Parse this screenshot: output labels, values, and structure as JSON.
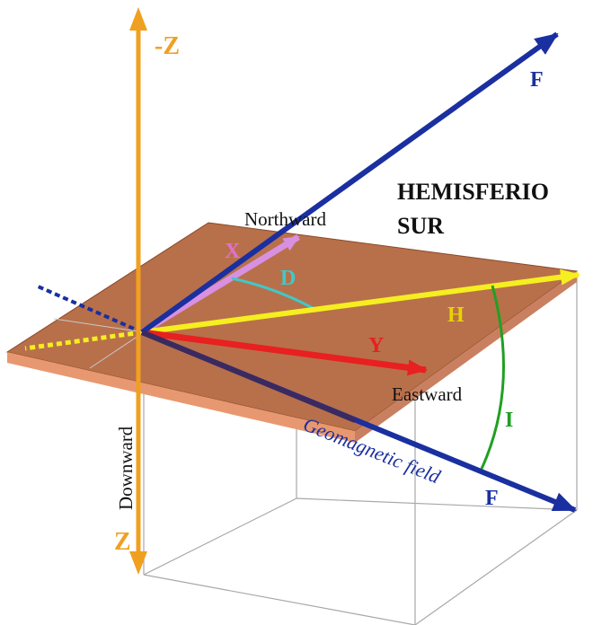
{
  "labels": {
    "neg_z": "-Z",
    "f_top": "F",
    "hemisphere_line1": "HEMISFERIO",
    "hemisphere_line2": "SUR",
    "northward": "Northward",
    "x": "X",
    "d": "D",
    "h": "H",
    "y": "Y",
    "eastward": "Eastward",
    "i": "I",
    "geomagnetic_field": "Geomagnetic field",
    "f_bottom": "F",
    "downward": "Downward",
    "z": "Z"
  },
  "colors": {
    "orange_axis": "#f0a020",
    "f_vector": "#1a2fa0",
    "x_vector": "#d890e0",
    "x_label": "#e070d0",
    "d_arc": "#40c8c8",
    "h_vector": "#f5ee20",
    "h_label": "#e8d400",
    "y_vector": "#e82020",
    "i_arc": "#20a020",
    "plane_top": "#b8704a",
    "plane_front": "#e89870",
    "box_lines": "#a8a8a8",
    "black_text": "#111111"
  }
}
